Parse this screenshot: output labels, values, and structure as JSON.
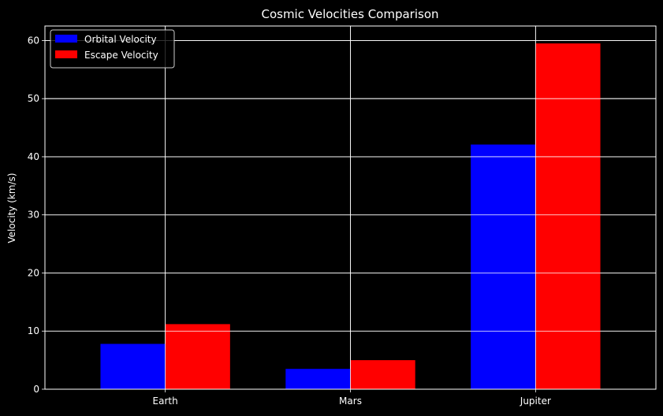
{
  "chart_data": {
    "type": "bar",
    "title": "Cosmic Velocities Comparison",
    "xlabel": "",
    "ylabel": "Velocity (km/s)",
    "categories": [
      "Earth",
      "Mars",
      "Jupiter"
    ],
    "series": [
      {
        "name": "Orbital Velocity",
        "values": [
          7.8,
          3.5,
          42.1
        ],
        "color": "#0000ff"
      },
      {
        "name": "Escape Velocity",
        "values": [
          11.2,
          5.0,
          59.5
        ],
        "color": "#ff0000"
      }
    ],
    "ylim": [
      0,
      62.5
    ],
    "yticks": [
      0,
      10,
      20,
      30,
      40,
      50,
      60
    ],
    "grid": true,
    "legend_position": "upper-left",
    "background": "#000000",
    "foreground": "#ffffff"
  }
}
